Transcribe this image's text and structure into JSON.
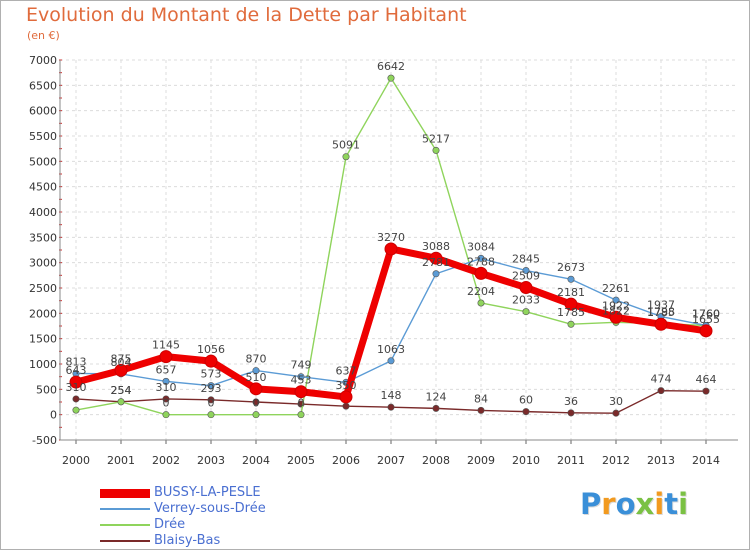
{
  "title": "Evolution du Montant de la Dette par Habitant",
  "unit_label": "(en €)",
  "logo": {
    "text": "Proxiti",
    "letters": [
      {
        "ch": "P",
        "color": "#3a8fd8"
      },
      {
        "ch": "r",
        "color": "#f29a1f"
      },
      {
        "ch": "o",
        "color": "#3a8fd8"
      },
      {
        "ch": "x",
        "color": "#7ac143"
      },
      {
        "ch": "i",
        "color": "#f29a1f"
      },
      {
        "ch": "t",
        "color": "#3a8fd8"
      },
      {
        "ch": "i",
        "color": "#7ac143"
      }
    ]
  },
  "chart_data": {
    "type": "line",
    "title": "Evolution du Montant de la Dette par Habitant",
    "xlabel": "",
    "ylabel": "(en €)",
    "ylim": [
      -500,
      7000
    ],
    "yticks": [
      -500,
      0,
      500,
      1000,
      1500,
      2000,
      2500,
      3000,
      3500,
      4000,
      4500,
      5000,
      5500,
      6000,
      6500,
      7000
    ],
    "x": [
      "2000",
      "2001",
      "2002",
      "2003",
      "2004",
      "2005",
      "2006",
      "2007",
      "2008",
      "2009",
      "2010",
      "2011",
      "2012",
      "2013",
      "2014"
    ],
    "grid": true,
    "legend_position": "bottom-left",
    "series": [
      {
        "name": "BUSSY-LA-PESLE",
        "color": "#ee0000",
        "values": [
          643,
          875,
          1145,
          1056,
          510,
          453,
          350,
          3270,
          3088,
          2788,
          2509,
          2181,
          1922,
          1785,
          1655
        ],
        "labels": [
          "643",
          "875",
          "1145",
          "1056",
          "510",
          "453",
          "350",
          "3270",
          "3088",
          "2788",
          "2509",
          "2181",
          "1922",
          "1785",
          "1655"
        ]
      },
      {
        "name": "Verrey-sous-Drée",
        "color": "#5b9bd5",
        "values": [
          813,
          804,
          657,
          573,
          870,
          749,
          637,
          1063,
          2781,
          3084,
          2845,
          2673,
          2261,
          1937,
          1760
        ],
        "labels": [
          "813",
          "804",
          "657",
          "573",
          "870",
          "749",
          "637",
          "1063",
          "2781",
          "3084",
          "2845",
          "2673",
          "2261",
          "1937",
          "1760"
        ]
      },
      {
        "name": "Drée",
        "color": "#8fd45c",
        "values": [
          90,
          254,
          0,
          0,
          0,
          0,
          5091,
          6642,
          5217,
          2204,
          2033,
          1785,
          1822,
          1798,
          1760
        ],
        "labels": [
          "",
          "254",
          "0",
          "0",
          "0",
          "0",
          "5091",
          "6642",
          "5217",
          "2204",
          "2033",
          "1785",
          "1822",
          "1798",
          "1760"
        ]
      },
      {
        "name": "Blaisy-Bas",
        "color": "#7a2a2a",
        "values": [
          310,
          254,
          310,
          293,
          250,
          210,
          168,
          148,
          124,
          84,
          60,
          36,
          30,
          474,
          464
        ],
        "labels": [
          "310",
          "254",
          "310",
          "293",
          "",
          "",
          "",
          "148",
          "124",
          "84",
          "60",
          "36",
          "30",
          "474",
          "464"
        ]
      }
    ]
  }
}
